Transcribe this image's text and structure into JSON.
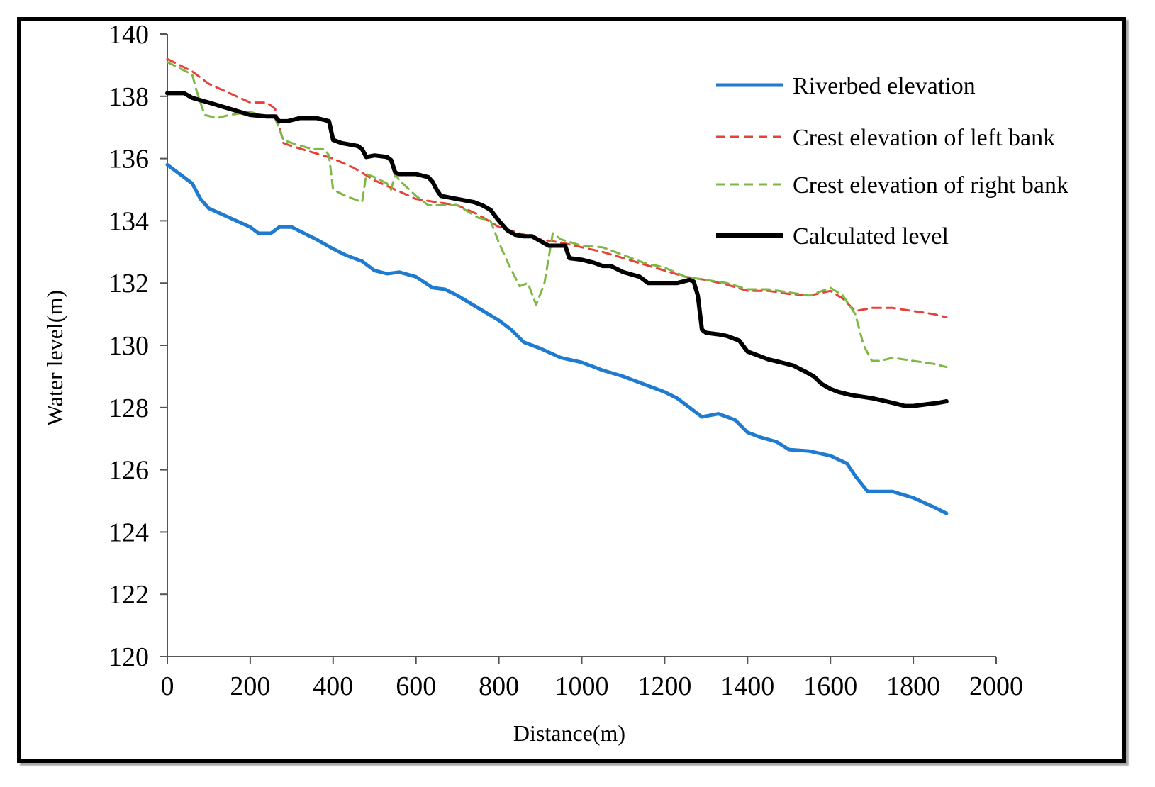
{
  "chart_data": {
    "type": "line",
    "xlabel": "Distance(m)",
    "ylabel": "Water level(m)",
    "xlim": [
      0,
      2000
    ],
    "ylim": [
      120,
      140
    ],
    "x_ticks": [
      "0",
      "200",
      "400",
      "600",
      "800",
      "1000",
      "1200",
      "1400",
      "1600",
      "1800",
      "2000"
    ],
    "y_ticks": [
      "120",
      "122",
      "124",
      "126",
      "128",
      "130",
      "132",
      "134",
      "136",
      "138",
      "140"
    ],
    "grid": false,
    "legend_position": "top-right",
    "series": [
      {
        "name": "Riverbed  elevation",
        "color": "#1f7bd0",
        "style": "solid",
        "x": [
          0,
          30,
          60,
          80,
          100,
          150,
          200,
          220,
          250,
          270,
          300,
          330,
          360,
          400,
          430,
          470,
          500,
          530,
          560,
          600,
          640,
          670,
          700,
          750,
          800,
          830,
          860,
          900,
          950,
          1000,
          1030,
          1050,
          1100,
          1150,
          1200,
          1230,
          1260,
          1290,
          1330,
          1370,
          1400,
          1430,
          1470,
          1500,
          1550,
          1600,
          1640,
          1660,
          1690,
          1720,
          1750,
          1800,
          1850,
          1880
        ],
        "y": [
          135.8,
          135.5,
          135.2,
          134.7,
          134.4,
          134.1,
          133.8,
          133.6,
          133.6,
          133.8,
          133.8,
          133.6,
          133.4,
          133.1,
          132.9,
          132.7,
          132.4,
          132.3,
          132.35,
          132.2,
          131.85,
          131.8,
          131.6,
          131.2,
          130.8,
          130.5,
          130.1,
          129.9,
          129.6,
          129.45,
          129.3,
          129.2,
          129.0,
          128.75,
          128.5,
          128.3,
          128.0,
          127.7,
          127.8,
          127.6,
          127.2,
          127.05,
          126.9,
          126.65,
          126.6,
          126.45,
          126.2,
          125.8,
          125.3,
          125.3,
          125.3,
          125.1,
          124.8,
          124.6
        ]
      },
      {
        "name": "Crest elevation of left bank",
        "color": "#e8413a",
        "style": "dashed",
        "x": [
          0,
          60,
          100,
          150,
          200,
          240,
          260,
          280,
          300,
          350,
          400,
          450,
          500,
          550,
          600,
          650,
          700,
          750,
          800,
          850,
          900,
          950,
          1000,
          1050,
          1100,
          1150,
          1200,
          1250,
          1300,
          1350,
          1400,
          1450,
          1500,
          1550,
          1600,
          1630,
          1660,
          1700,
          1750,
          1800,
          1850,
          1880
        ],
        "y": [
          139.2,
          138.8,
          138.4,
          138.1,
          137.8,
          137.8,
          137.6,
          136.5,
          136.4,
          136.2,
          136.0,
          135.7,
          135.3,
          135.0,
          134.7,
          134.6,
          134.5,
          134.2,
          133.8,
          133.6,
          133.4,
          133.3,
          133.15,
          133.0,
          132.8,
          132.6,
          132.4,
          132.2,
          132.1,
          131.95,
          131.75,
          131.75,
          131.65,
          131.6,
          131.75,
          131.5,
          131.1,
          131.2,
          131.2,
          131.1,
          131.0,
          130.9
        ]
      },
      {
        "name": "Crest elevation of right bank",
        "color": "#7db843",
        "style": "dashed",
        "x": [
          0,
          60,
          70,
          90,
          120,
          150,
          200,
          250,
          260,
          280,
          300,
          350,
          380,
          390,
          400,
          430,
          460,
          470,
          480,
          500,
          530,
          540,
          550,
          560,
          600,
          630,
          650,
          700,
          750,
          780,
          800,
          820,
          850,
          870,
          890,
          910,
          930,
          950,
          1000,
          1050,
          1100,
          1150,
          1200,
          1250,
          1300,
          1350,
          1400,
          1450,
          1500,
          1550,
          1600,
          1630,
          1660,
          1680,
          1700,
          1720,
          1750,
          1800,
          1850,
          1880
        ],
        "y": [
          139.1,
          138.7,
          138.2,
          137.4,
          137.3,
          137.4,
          137.5,
          137.3,
          137.3,
          136.6,
          136.5,
          136.3,
          136.3,
          136.1,
          135.0,
          134.8,
          134.65,
          134.6,
          135.5,
          135.4,
          135.2,
          135.0,
          135.5,
          135.3,
          134.8,
          134.5,
          134.5,
          134.5,
          134.1,
          134.0,
          133.3,
          132.7,
          131.9,
          132.0,
          131.3,
          132.0,
          133.6,
          133.4,
          133.2,
          133.15,
          132.9,
          132.65,
          132.5,
          132.2,
          132.1,
          132.0,
          131.8,
          131.8,
          131.7,
          131.6,
          131.85,
          131.6,
          131.0,
          130.0,
          129.5,
          129.5,
          129.6,
          129.5,
          129.4,
          129.3
        ]
      },
      {
        "name": "Calculated level",
        "color": "#000000",
        "style": "solid",
        "x": [
          0,
          40,
          60,
          100,
          150,
          200,
          240,
          260,
          270,
          290,
          320,
          360,
          390,
          400,
          420,
          460,
          470,
          480,
          500,
          530,
          540,
          550,
          560,
          600,
          630,
          640,
          650,
          660,
          700,
          740,
          760,
          780,
          800,
          820,
          840,
          860,
          880,
          900,
          920,
          960,
          970,
          1000,
          1030,
          1050,
          1070,
          1100,
          1140,
          1160,
          1170,
          1200,
          1230,
          1260,
          1270,
          1280,
          1290,
          1300,
          1330,
          1350,
          1370,
          1380,
          1400,
          1420,
          1450,
          1480,
          1510,
          1540,
          1560,
          1580,
          1600,
          1620,
          1650,
          1700,
          1750,
          1780,
          1800,
          1830,
          1860,
          1880
        ],
        "y": [
          138.1,
          138.1,
          137.95,
          137.8,
          137.6,
          137.4,
          137.35,
          137.35,
          137.2,
          137.2,
          137.3,
          137.3,
          137.2,
          136.6,
          136.5,
          136.4,
          136.3,
          136.05,
          136.1,
          136.05,
          135.95,
          135.55,
          135.5,
          135.5,
          135.4,
          135.25,
          135.0,
          134.8,
          134.7,
          134.6,
          134.5,
          134.35,
          134.0,
          133.7,
          133.55,
          133.5,
          133.5,
          133.35,
          133.2,
          133.2,
          132.8,
          132.75,
          132.65,
          132.55,
          132.55,
          132.35,
          132.2,
          132.0,
          132.0,
          132.0,
          132.0,
          132.1,
          132.05,
          131.6,
          130.5,
          130.4,
          130.35,
          130.3,
          130.2,
          130.15,
          129.8,
          129.7,
          129.55,
          129.45,
          129.35,
          129.15,
          129.0,
          128.75,
          128.6,
          128.5,
          128.4,
          128.3,
          128.15,
          128.05,
          128.05,
          128.1,
          128.15,
          128.2
        ]
      }
    ]
  }
}
